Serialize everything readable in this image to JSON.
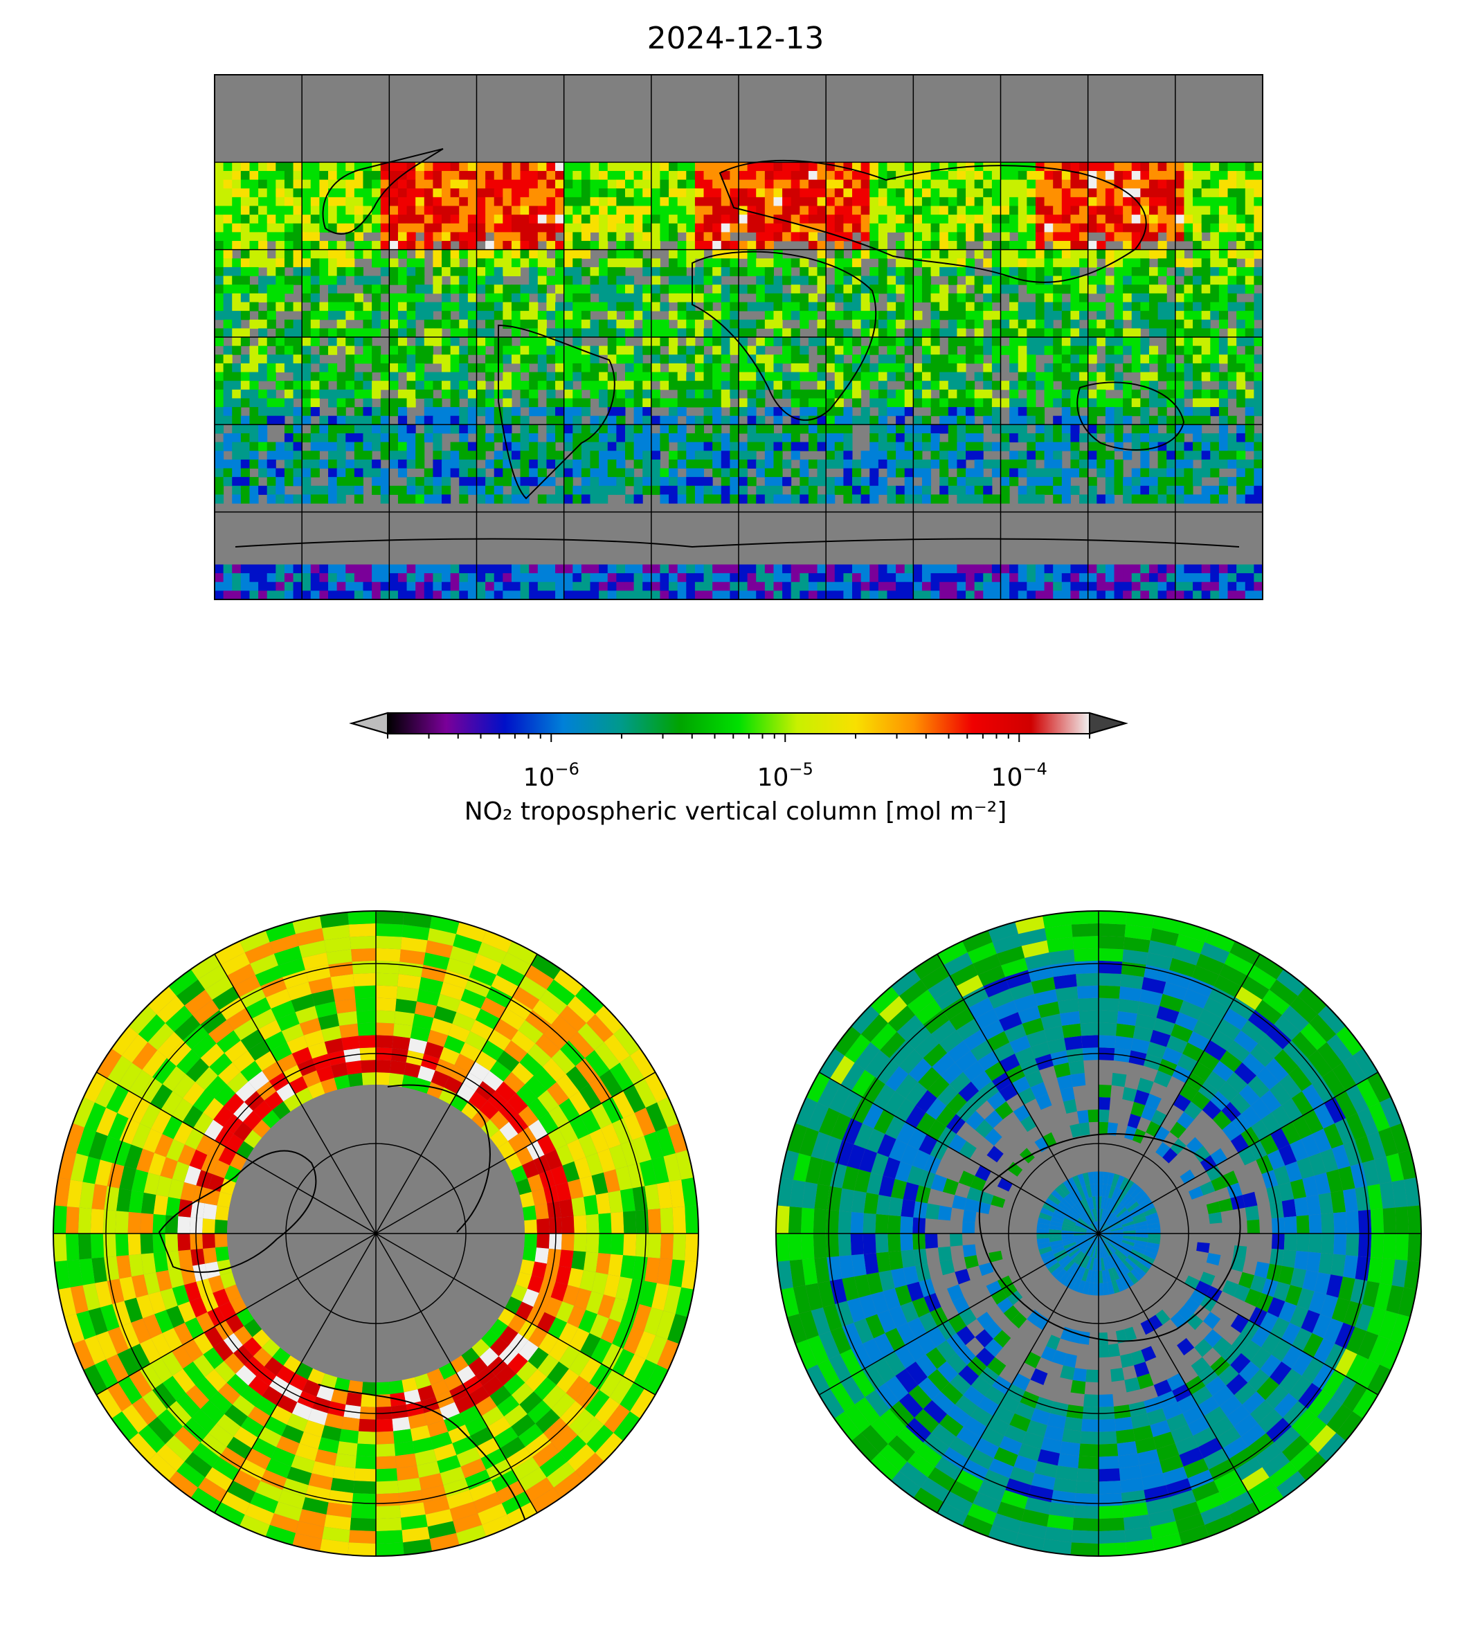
{
  "title": "2024-12-13",
  "colorbar": {
    "label": "NO₂ tropospheric vertical column [mol m⁻²]",
    "scale": "log",
    "range": [
      2e-07,
      0.0002
    ],
    "extend": "both",
    "under_color": "#bdbdbd",
    "over_color": "#404040",
    "stops": [
      "#000000",
      "#7a0099",
      "#0010c8",
      "#0080d8",
      "#009a8a",
      "#00a400",
      "#00e000",
      "#c8f000",
      "#f8e000",
      "#ff9000",
      "#f00000",
      "#d00000",
      "#f0f0f0"
    ],
    "ticks": [
      {
        "base": "10",
        "exp": "−6"
      },
      {
        "base": "10",
        "exp": "−5"
      },
      {
        "base": "10",
        "exp": "−4"
      }
    ]
  },
  "maps": {
    "global": {
      "projection": "PlateCarree",
      "no_data_color": "#808080"
    },
    "north_polar": {
      "projection": "NorthPolarStereo"
    },
    "south_polar": {
      "projection": "SouthPolarStereo"
    }
  }
}
